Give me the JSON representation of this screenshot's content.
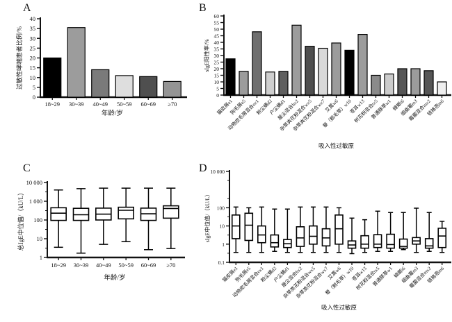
{
  "figure": {
    "background": "#ffffff",
    "axis_color": "#111111"
  },
  "chart_data": [
    {
      "panel": "A",
      "type": "bar",
      "title": "",
      "xlabel": "年龄/岁",
      "ylabel": "过敏性哮喘患者比例/%",
      "scale": "linear",
      "ylim": [
        0,
        40
      ],
      "ytick_step": 5,
      "grid": false,
      "categories": [
        "18~29",
        "30~39",
        "40~49",
        "50~59",
        "60~69",
        "≥70"
      ],
      "values": [
        20,
        35.5,
        14,
        11,
        10.5,
        8
      ],
      "bar_colors": [
        "#000000",
        "#9c9c9c",
        "#7a7a7a",
        "#dedede",
        "#4f4f4f",
        "#949494"
      ]
    },
    {
      "panel": "B",
      "type": "bar",
      "title": "",
      "xlabel": "吸入性过敏原",
      "ylabel": "sIgE阳性率/%",
      "scale": "linear",
      "ylim": [
        0,
        60
      ],
      "ytick_step": 5,
      "grid": false,
      "categories": [
        "猫皮屑e1",
        "狗毛屑e5",
        "动物皮毛屑混合ex1",
        "粉尘螨d2",
        "户尘螨d1",
        "屋尘混合hx2",
        "杂草类花粉混合wx5",
        "杂草类花粉混合wx7",
        "艾蒿w6",
        "藜（鹅毛草）w10",
        "苍耳w13",
        "树花粉混合tx5",
        "普通豚草w1",
        "蟑螂i6",
        "烟曲霉m3",
        "霉菌混合mx2",
        "链格孢m6"
      ],
      "values": [
        27.5,
        18,
        48,
        17.5,
        18,
        53,
        37,
        35.5,
        39.5,
        34,
        46,
        15,
        16,
        20,
        20,
        18.5,
        10
      ],
      "bar_colors": [
        "#000000",
        "#9c9c9c",
        "#6f6f6f",
        "#cfcfcf",
        "#5f5f5f",
        "#9c9c9c",
        "#4f4f4f",
        "#d9d9d9",
        "#9c9c9c",
        "#000000",
        "#9c9c9c",
        "#8a8a8a",
        "#cccccc",
        "#565656",
        "#9c9c9c",
        "#565656",
        "#efefef"
      ]
    },
    {
      "panel": "C",
      "type": "box",
      "title": "",
      "xlabel": "年龄/岁",
      "ylabel": "总IgE中位值/（kU/L）",
      "scale": "log",
      "ylim": [
        1,
        10000
      ],
      "yticks": [
        {
          "v": 1,
          "label": "1"
        },
        {
          "v": 10,
          "label": "10"
        },
        {
          "v": 100,
          "label": "100"
        },
        {
          "v": 1000,
          "label": "1 000"
        },
        {
          "v": 10000,
          "label": "10 000"
        }
      ],
      "grid": false,
      "categories": [
        "18~29",
        "30~39",
        "40~49",
        "50~59",
        "60~69",
        "≥70"
      ],
      "boxes": [
        {
          "min": 3.5,
          "q1": 95,
          "median": 230,
          "q3": 450,
          "max": 4000
        },
        {
          "min": 1.7,
          "q1": 95,
          "median": 190,
          "q3": 420,
          "max": 4700
        },
        {
          "min": 5,
          "q1": 100,
          "median": 205,
          "q3": 430,
          "max": 5000
        },
        {
          "min": 7,
          "q1": 115,
          "median": 330,
          "q3": 480,
          "max": 5000
        },
        {
          "min": 2.6,
          "q1": 95,
          "median": 215,
          "q3": 430,
          "max": 5000
        },
        {
          "min": 3,
          "q1": 125,
          "median": 410,
          "q3": 570,
          "max": 5000
        }
      ]
    },
    {
      "panel": "D",
      "type": "box",
      "title": "",
      "xlabel": "吸入性过敏原",
      "ylabel": "sIgE中位值/（kU/L）",
      "scale": "log",
      "ylim": [
        0.1,
        10000
      ],
      "yticks": [
        {
          "v": 0.1,
          "label": "0.1"
        },
        {
          "v": 1,
          "label": "1"
        },
        {
          "v": 10,
          "label": "10"
        },
        {
          "v": 100,
          "label": "100"
        },
        {
          "v": 10000,
          "label": "10 000"
        }
      ],
      "grid": false,
      "categories": [
        "猫皮屑e1",
        "狗毛屑e5",
        "动物皮毛屑混合ex1",
        "粉尘螨d2",
        "户尘螨d1",
        "屋尘混合hx2",
        "杂草类花粉混合wx5",
        "杂草类花粉混合wx7",
        "艾蒿w6",
        "藜（鹅毛草）w10",
        "苍耳w13",
        "树花粉混合tx5",
        "普通豚草w1",
        "蟑螂i6",
        "烟曲霉m3",
        "霉菌混合mx2",
        "链格孢m6"
      ],
      "boxes": [
        {
          "min": 0.35,
          "q1": 2.0,
          "median": 10,
          "q3": 40,
          "max": 110
        },
        {
          "min": 0.35,
          "q1": 1.6,
          "median": 11,
          "q3": 50,
          "max": 100
        },
        {
          "min": 0.35,
          "q1": 1.2,
          "median": 3.2,
          "q3": 10,
          "max": 110
        },
        {
          "min": 0.4,
          "q1": 0.7,
          "median": 1.2,
          "q3": 3.2,
          "max": 85
        },
        {
          "min": 0.35,
          "q1": 0.65,
          "median": 1.05,
          "q3": 1.8,
          "max": 85
        },
        {
          "min": 0.35,
          "q1": 0.75,
          "median": 2.2,
          "q3": 9,
          "max": 110
        },
        {
          "min": 0.35,
          "q1": 1.0,
          "median": 2.7,
          "q3": 10,
          "max": 110
        },
        {
          "min": 0.35,
          "q1": 0.8,
          "median": 2.2,
          "q3": 7,
          "max": 110
        },
        {
          "min": 0.35,
          "q1": 1.0,
          "median": 7,
          "q3": 40,
          "max": 100
        },
        {
          "min": 0.3,
          "q1": 0.6,
          "median": 0.9,
          "q3": 1.5,
          "max": 27
        },
        {
          "min": 0.35,
          "q1": 0.6,
          "median": 1.0,
          "q3": 2.9,
          "max": 22
        },
        {
          "min": 0.4,
          "q1": 0.65,
          "median": 1.0,
          "q3": 3.3,
          "max": 65
        },
        {
          "min": 0.4,
          "q1": 0.6,
          "median": 0.95,
          "q3": 3.5,
          "max": 55
        },
        {
          "min": 0.5,
          "q1": 0.6,
          "median": 0.75,
          "q3": 1.9,
          "max": 55
        },
        {
          "min": 0.35,
          "q1": 1.0,
          "median": 1.5,
          "q3": 2.3,
          "max": 95
        },
        {
          "min": 0.4,
          "q1": 0.6,
          "median": 0.8,
          "q3": 2.0,
          "max": 55
        },
        {
          "min": 0.35,
          "q1": 0.65,
          "median": 2.8,
          "q3": 7.5,
          "max": 18
        }
      ]
    }
  ]
}
